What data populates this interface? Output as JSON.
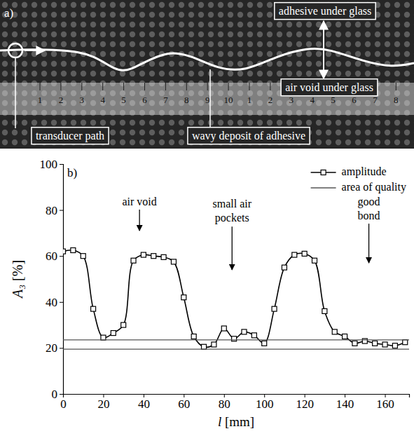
{
  "photo": {
    "panel_label": "a)",
    "labels": [
      "adhesive under glass",
      "air void under glass",
      "transducer path",
      "wavy deposit of adhesive"
    ],
    "ruler": [
      "1",
      "2",
      "3",
      "4",
      "5",
      "6",
      "7",
      "8",
      "9",
      "10",
      "1",
      "2",
      "3",
      "4",
      "5",
      "6",
      "7",
      "8"
    ]
  },
  "chart_data": {
    "type": "line",
    "panel_label": "b)",
    "x_label": "l [mm]",
    "y_label": "A₃ [%]",
    "xlim": [
      0,
      172
    ],
    "ylim": [
      0,
      100
    ],
    "xticks": [
      0,
      20,
      40,
      60,
      80,
      100,
      120,
      140,
      160
    ],
    "yticks": [
      0,
      20,
      40,
      60,
      80,
      100
    ],
    "legend": "upper right",
    "series": [
      {
        "name": "amplitude",
        "color": "#000000",
        "marker": "square",
        "x": [
          0,
          5,
          10,
          15,
          20,
          25,
          30,
          35,
          40,
          45,
          50,
          55,
          60,
          65,
          70,
          75,
          80,
          85,
          90,
          95,
          100,
          105,
          110,
          115,
          120,
          125,
          130,
          135,
          140,
          145,
          150,
          155,
          160,
          165,
          170
        ],
        "values": [
          62,
          62.5,
          60,
          37,
          24.5,
          26.5,
          30,
          58,
          60.5,
          60,
          59.5,
          57.5,
          42,
          25,
          20.5,
          21.5,
          28.5,
          24,
          27,
          25.5,
          22,
          37,
          55,
          60.5,
          61,
          58,
          36,
          27,
          25,
          22,
          23,
          22,
          21.5,
          21,
          22.5
        ]
      },
      {
        "name": "area of quality",
        "color": "#555555",
        "type": "hline",
        "values": [
          19.5,
          23.5
        ]
      }
    ],
    "annotations": [
      {
        "text": "air void",
        "xy": [
          38,
          71
        ],
        "xytext": [
          38,
          82
        ]
      },
      {
        "text": "small air pockets",
        "xy": [
          84,
          54
        ],
        "xytext": [
          84,
          81
        ]
      },
      {
        "text": "good bond",
        "xy": [
          152,
          57
        ],
        "xytext": [
          152,
          82
        ]
      }
    ]
  }
}
